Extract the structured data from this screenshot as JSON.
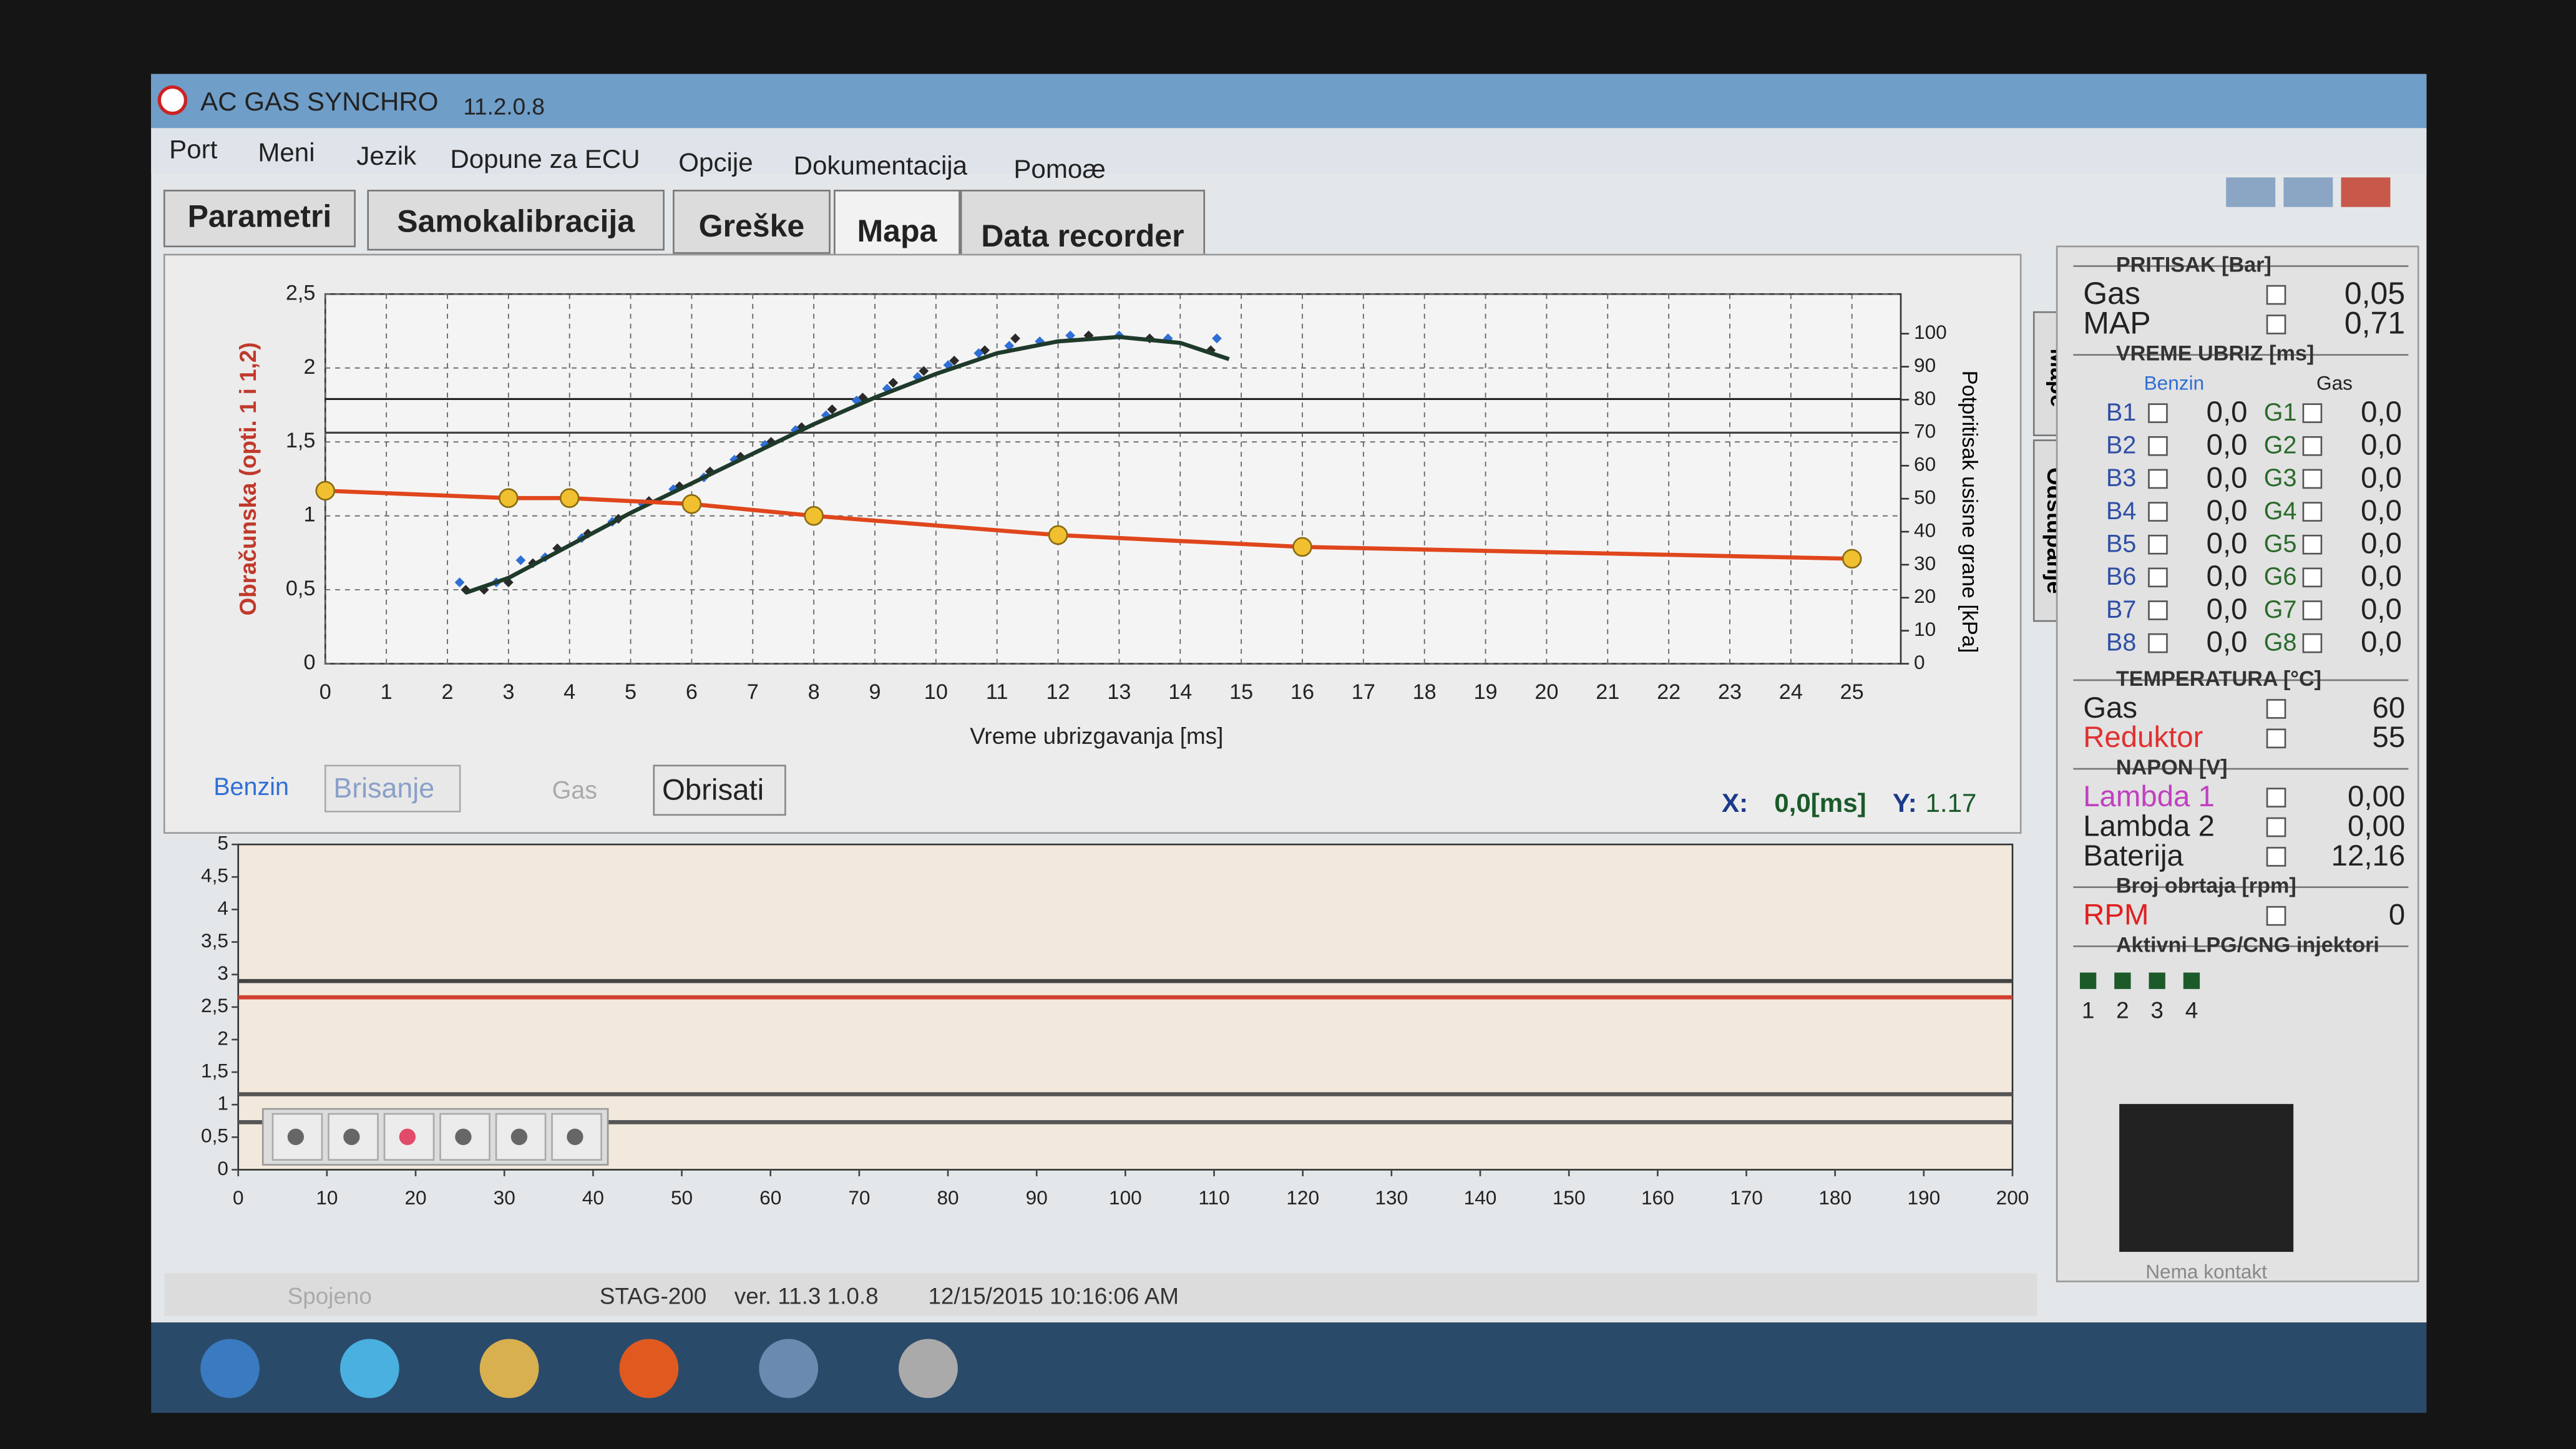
{
  "window": {
    "title": "AC GAS SYNCHRO",
    "version": "11.2.0.8"
  },
  "menu": [
    "Port",
    "Meni",
    "Jezik",
    "Dopune za ECU",
    "Opcije",
    "Dokumentacija",
    "Pomoæ"
  ],
  "tabs": [
    "Parametri",
    "Samokalibracija",
    "Greške",
    "Mapa",
    "Data recorder"
  ],
  "side_tabs": [
    "Mape",
    "Odstupanje"
  ],
  "chart_data": [
    {
      "type": "line",
      "x_label": "Vreme ubrizgavanja [ms]",
      "y_label": "Obračunska (opti. 1 i 1,2)",
      "y2_label": "Potpritisak usisne grane [kPa]",
      "xlim": [
        0,
        25.8
      ],
      "xticks": [
        0,
        1,
        2,
        3,
        4,
        5,
        6,
        7,
        8,
        9,
        10,
        11,
        12,
        13,
        14,
        15,
        16,
        17,
        18,
        19,
        20,
        21,
        22,
        23,
        24,
        25
      ],
      "ylim": [
        0,
        2.5
      ],
      "yticks": [
        0,
        {
          "value": 0.5,
          "label": "0,5"
        },
        1,
        {
          "value": 1.5,
          "label": "1,5"
        },
        2,
        {
          "value": 2.5,
          "label": "2,5"
        }
      ],
      "y2lim": [
        0,
        112
      ],
      "y2ticks": [
        0,
        10,
        20,
        30,
        40,
        50,
        60,
        70,
        80,
        90,
        100
      ],
      "grid": true,
      "ref_lines": [
        {
          "value": 1.79,
          "color": "#222"
        },
        {
          "value": 70,
          "axis": "y2",
          "color": "#444"
        }
      ],
      "series": [
        {
          "type": "scatter",
          "color": "#2a2a2a",
          "x": [
            2.3,
            2.6,
            3,
            3.4,
            3.8,
            4.3,
            4.8,
            5.3,
            5.8,
            6.3,
            6.8,
            7.3,
            7.8,
            8.3,
            8.8,
            9.3,
            9.8,
            10.3,
            10.8,
            11.3,
            12.5,
            13.5,
            14.5
          ],
          "values": [
            0.5,
            0.5,
            0.55,
            0.68,
            0.78,
            0.88,
            0.98,
            1.1,
            1.2,
            1.3,
            1.4,
            1.5,
            1.6,
            1.72,
            1.8,
            1.9,
            1.98,
            2.05,
            2.12,
            2.2,
            2.22,
            2.2,
            2.12
          ]
        },
        {
          "type": "scatter",
          "color": "#2f6fd6",
          "x": [
            2.2,
            2.8,
            3.2,
            3.6,
            4.2,
            4.7,
            5.2,
            5.7,
            6.2,
            6.7,
            7.2,
            7.7,
            8.2,
            8.7,
            9.2,
            9.7,
            10.2,
            10.7,
            11.2,
            11.7,
            12.2,
            13,
            13.8,
            14.6
          ],
          "values": [
            0.55,
            0.55,
            0.7,
            0.72,
            0.85,
            0.96,
            1.08,
            1.18,
            1.26,
            1.38,
            1.48,
            1.58,
            1.68,
            1.78,
            1.86,
            1.94,
            2.02,
            2.1,
            2.15,
            2.18,
            2.22,
            2.22,
            2.2,
            2.2
          ]
        },
        {
          "type": "line",
          "color": "#1e3a2a",
          "x": [
            2.3,
            3,
            4,
            5,
            6,
            7,
            8,
            9,
            10,
            11,
            12,
            13,
            14,
            14.8
          ],
          "values": [
            0.48,
            0.58,
            0.8,
            1.02,
            1.22,
            1.42,
            1.62,
            1.8,
            1.96,
            2.1,
            2.18,
            2.21,
            2.17,
            2.06
          ]
        },
        {
          "type": "line",
          "color": "#e0461c",
          "marker_color": "#f0c030",
          "x": [
            0,
            3,
            4,
            6,
            8,
            12,
            16,
            25
          ],
          "values": [
            1.17,
            1.12,
            1.12,
            1.08,
            1.0,
            0.87,
            0.79,
            0.71
          ]
        }
      ]
    },
    {
      "type": "line",
      "xlim": [
        0,
        200
      ],
      "xticks": [
        0,
        10,
        20,
        30,
        40,
        50,
        60,
        70,
        80,
        90,
        100,
        110,
        120,
        130,
        140,
        150,
        160,
        170,
        180,
        190,
        200
      ],
      "ylim": [
        0,
        5
      ],
      "yticks": [
        0,
        {
          "value": 0.5,
          "label": "0,5"
        },
        1,
        {
          "value": 1.5,
          "label": "1,5"
        },
        2,
        {
          "value": 2.5,
          "label": "2,5"
        },
        3,
        {
          "value": 3.5,
          "label": "3,5"
        },
        4,
        {
          "value": 4.5,
          "label": "4,5"
        },
        5
      ],
      "grid": false,
      "series": [
        {
          "type": "line",
          "color": "#444",
          "x": [
            0,
            200
          ],
          "values": [
            2.9,
            2.9
          ]
        },
        {
          "type": "line",
          "color": "#d04030",
          "x": [
            0,
            200
          ],
          "values": [
            2.65,
            2.65
          ]
        },
        {
          "type": "line",
          "color": "#555",
          "x": [
            0,
            200
          ],
          "values": [
            1.16,
            1.16
          ]
        },
        {
          "type": "line",
          "color": "#555",
          "x": [
            0,
            200
          ],
          "values": [
            0.73,
            0.73
          ]
        }
      ]
    }
  ],
  "controls": {
    "benzin": "Benzin",
    "brisanje": "Brisanje",
    "gas": "Gas",
    "obrisati": "Obrisati"
  },
  "cursor": {
    "x_label": "X:",
    "x_value": "0,0[ms]",
    "y_label": "Y:",
    "y_value": "1.17"
  },
  "panel": {
    "pressure": {
      "title": "PRITISAK [Bar]",
      "rows": [
        {
          "label": "Gas",
          "value": "0,05",
          "color": "#222"
        },
        {
          "label": "MAP",
          "value": "0,71",
          "color": "#222"
        }
      ]
    },
    "injection": {
      "title": "VREME UBRIZ [ms]",
      "col_benzin": "Benzin",
      "col_gas": "Gas",
      "rows": [
        {
          "b": "B1",
          "bv": "0,0",
          "g": "G1",
          "gv": "0,0"
        },
        {
          "b": "B2",
          "bv": "0,0",
          "g": "G2",
          "gv": "0,0"
        },
        {
          "b": "B3",
          "bv": "0,0",
          "g": "G3",
          "gv": "0,0"
        },
        {
          "b": "B4",
          "bv": "0,0",
          "g": "G4",
          "gv": "0,0"
        },
        {
          "b": "B5",
          "bv": "0,0",
          "g": "G5",
          "gv": "0,0"
        },
        {
          "b": "B6",
          "bv": "0,0",
          "g": "G6",
          "gv": "0,0"
        },
        {
          "b": "B7",
          "bv": "0,0",
          "g": "G7",
          "gv": "0,0"
        },
        {
          "b": "B8",
          "bv": "0,0",
          "g": "G8",
          "gv": "0,0"
        }
      ]
    },
    "temperature": {
      "title": "TEMPERATURA [°C]",
      "rows": [
        {
          "label": "Gas",
          "value": "60",
          "color": "#222"
        },
        {
          "label": "Reduktor",
          "value": "55",
          "color": "#e03030"
        }
      ]
    },
    "voltage": {
      "title": "NAPON [V]",
      "rows": [
        {
          "label": "Lambda 1",
          "value": "0,00",
          "color": "#c040c0"
        },
        {
          "label": "Lambda 2",
          "value": "0,00",
          "color": "#222"
        },
        {
          "label": "Baterija",
          "value": "12,16",
          "color": "#222"
        }
      ]
    },
    "rpm": {
      "title": "Broj obrtaja [rpm]",
      "rows": [
        {
          "label": "RPM",
          "value": "0",
          "color": "#e02020"
        }
      ]
    },
    "injectors": {
      "title": "Aktivni LPG/CNG injektori",
      "labels": [
        "1",
        "2",
        "3",
        "4"
      ]
    },
    "contact": "Nema kontakt"
  },
  "status": [
    "Spojeno",
    "STAG-200",
    "ver. 11.3 1.0.8",
    "12/15/2015 10:16:06 AM"
  ]
}
